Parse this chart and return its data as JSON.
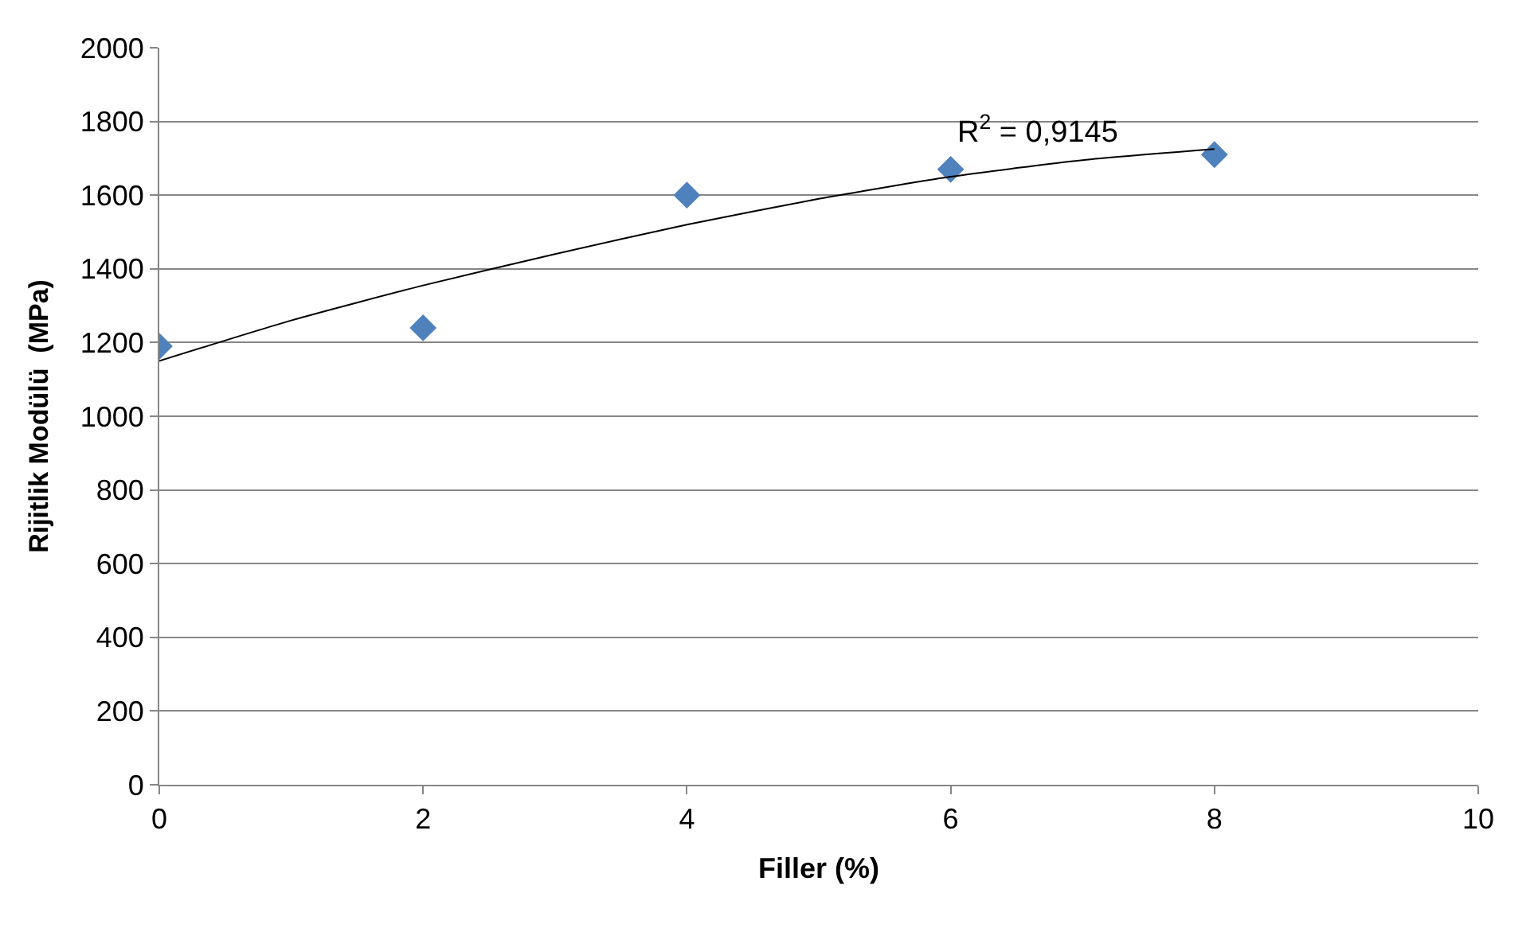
{
  "chart_data": {
    "type": "scatter",
    "xlabel": "Filler (%)",
    "ylabel": "Rijitlik Modülü  (MPa)",
    "x": [
      0,
      2,
      4,
      6,
      8
    ],
    "series": [
      {
        "color": "#4f81bd",
        "marker": "diamond",
        "values": [
          1190,
          1240,
          1600,
          1670,
          1710
        ]
      },
      {
        "type": "line",
        "color": "#000000",
        "marker": "none",
        "line_style": "solid",
        "x": [
          0,
          1,
          2,
          3,
          4,
          5,
          6,
          7,
          8
        ],
        "values": [
          1150,
          1260,
          1355,
          1440,
          1520,
          1590,
          1650,
          1695,
          1725
        ]
      }
    ],
    "annotations": [
      {
        "text": "R$^{2}$ = 0,9145",
        "x": 6.03,
        "y": 1715
      }
    ],
    "xlim": [
      0,
      10
    ],
    "xticks": [
      0,
      2,
      4,
      6,
      8,
      10
    ],
    "ylim": [
      0,
      2000
    ],
    "yticks": [
      0,
      200,
      400,
      600,
      800,
      1000,
      1200,
      1400,
      1600,
      1800,
      2000
    ],
    "grid": "y",
    "legend": false
  }
}
